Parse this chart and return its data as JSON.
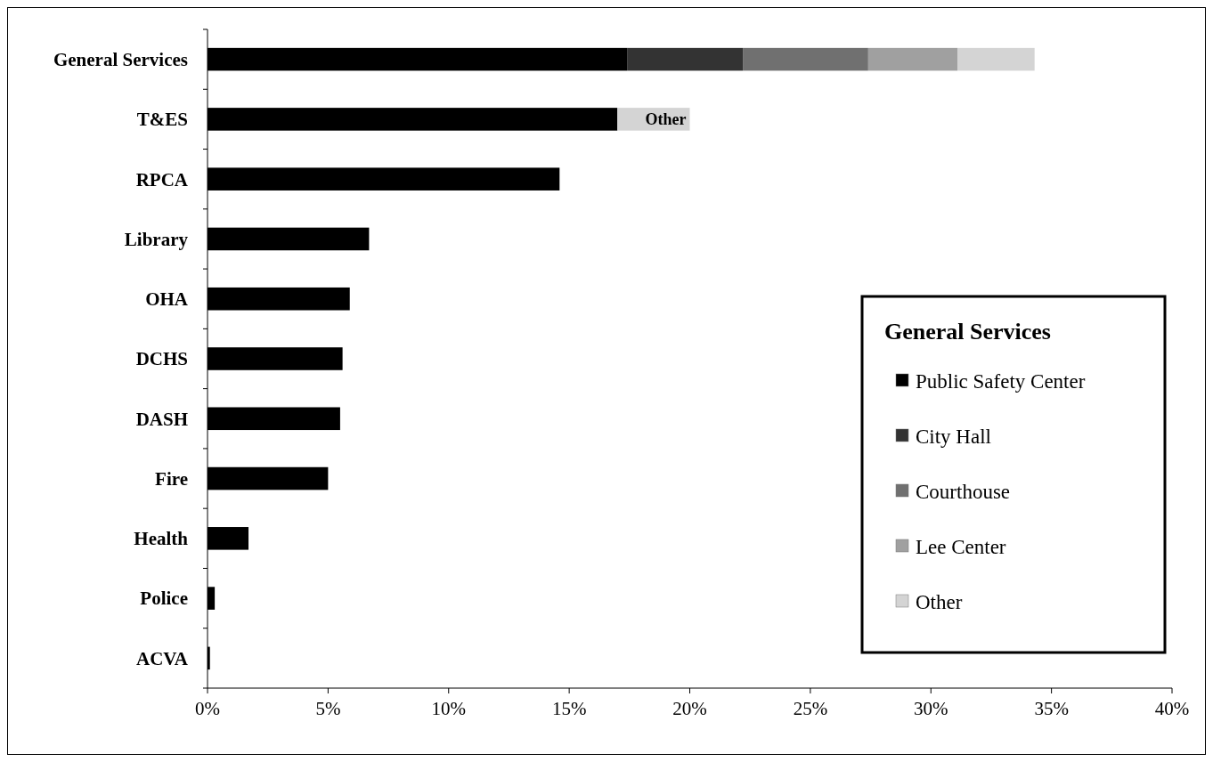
{
  "chart_data": {
    "type": "bar",
    "orientation": "horizontal",
    "stacked": true,
    "categories": [
      "General Services",
      "T&ES",
      "RPCA",
      "Library",
      "OHA",
      "DCHS",
      "DASH",
      "Fire",
      "Health",
      "Police",
      "ACVA"
    ],
    "series": [
      {
        "color": "#000000",
        "values": [
          null,
          17.0,
          14.6,
          6.7,
          5.9,
          5.6,
          5.5,
          5.0,
          1.7,
          0.3,
          0.1
        ]
      },
      {
        "name": "Public Safety Center",
        "color": "#000000",
        "values": [
          17.4,
          null,
          null,
          null,
          null,
          null,
          null,
          null,
          null,
          null,
          null
        ]
      },
      {
        "name": "City Hall",
        "color": "#333333",
        "values": [
          4.8,
          null,
          null,
          null,
          null,
          null,
          null,
          null,
          null,
          null,
          null
        ]
      },
      {
        "name": "Courthouse",
        "color": "#707070",
        "values": [
          5.2,
          null,
          null,
          null,
          null,
          null,
          null,
          null,
          null,
          null,
          null
        ]
      },
      {
        "name": "Lee Center",
        "color": "#a0a0a0",
        "values": [
          3.7,
          null,
          null,
          null,
          null,
          null,
          null,
          null,
          null,
          null,
          null
        ]
      },
      {
        "name": "Other",
        "color": "#d4d4d4",
        "values": [
          3.2,
          3.0,
          null,
          null,
          null,
          null,
          null,
          null,
          null,
          null,
          null
        ]
      }
    ],
    "xlim": [
      0,
      40
    ],
    "xticks": [
      {
        "value": 0,
        "label": "0%"
      },
      {
        "value": 5,
        "label": "5%"
      },
      {
        "value": 10,
        "label": "10%"
      },
      {
        "value": 15,
        "label": "15%"
      },
      {
        "value": 20,
        "label": "20%"
      },
      {
        "value": 25,
        "label": "25%"
      },
      {
        "value": 30,
        "label": "30%"
      },
      {
        "value": 35,
        "label": "35%"
      },
      {
        "value": 40,
        "label": "40%"
      }
    ],
    "annotations": [
      {
        "text": "Other",
        "x": 20,
        "y": "T&ES"
      }
    ],
    "legend": "bottom right",
    "legend_title": "General Services",
    "grid": false
  }
}
